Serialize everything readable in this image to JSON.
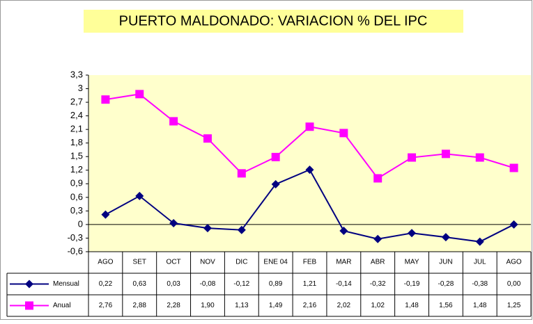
{
  "chart_data": {
    "type": "line",
    "title": "PUERTO MALDONADO: VARIACION  %  DEL  IPC",
    "categories": [
      "AGO",
      "SET",
      "OCT",
      "NOV",
      "DIC",
      "ENE 04",
      "FEB",
      "MAR",
      "ABR",
      "MAY",
      "JUN",
      "JUL",
      "AGO"
    ],
    "series": [
      {
        "name": "Mensual",
        "color": "#000080",
        "values": [
          0.22,
          0.63,
          0.03,
          -0.08,
          -0.12,
          0.89,
          1.21,
          -0.14,
          -0.32,
          -0.19,
          -0.28,
          -0.38,
          0.0
        ],
        "value_labels": [
          "0,22",
          "0,63",
          "0,03",
          "-0,08",
          "-0,12",
          "0,89",
          "1,21",
          "-0,14",
          "-0,32",
          "-0,19",
          "-0,28",
          "-0,38",
          "0,00"
        ]
      },
      {
        "name": "Anual",
        "color": "#ff00ff",
        "values": [
          2.76,
          2.88,
          2.28,
          1.9,
          1.13,
          1.49,
          2.16,
          2.02,
          1.02,
          1.48,
          1.56,
          1.48,
          1.25
        ],
        "value_labels": [
          "2,76",
          "2,88",
          "2,28",
          "1,90",
          "1,13",
          "1,49",
          "2,16",
          "2,02",
          "1,02",
          "1,48",
          "1,56",
          "1,48",
          "1,25"
        ]
      }
    ],
    "ylim": [
      -0.6,
      3.3
    ],
    "yticks": [
      {
        "value": -0.6,
        "label": "-0,6"
      },
      {
        "value": -0.3,
        "label": "-0,3"
      },
      0,
      {
        "value": 0.3,
        "label": "0,3"
      },
      {
        "value": 0.6,
        "label": "0,6"
      },
      {
        "value": 0.9,
        "label": "0,9"
      },
      {
        "value": 1.2,
        "label": "1,2"
      },
      {
        "value": 1.5,
        "label": "1,5"
      },
      {
        "value": 1.8,
        "label": "1,8"
      },
      {
        "value": 2.1,
        "label": "2,1"
      },
      {
        "value": 2.4,
        "label": "2,4"
      },
      {
        "value": 2.7,
        "label": "2,7"
      },
      3,
      {
        "value": 3.3,
        "label": "3,3"
      }
    ]
  }
}
